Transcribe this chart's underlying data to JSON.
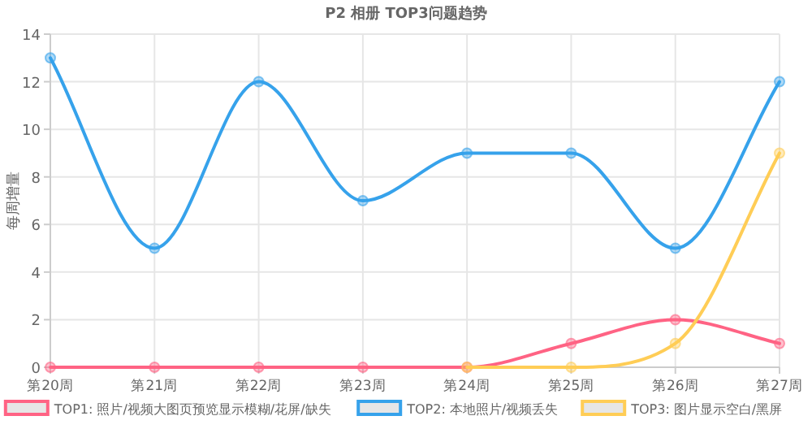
{
  "chart_data": {
    "type": "line",
    "title": "P2 相册 TOP3问题趋势",
    "ylabel": "每周增量",
    "categories": [
      "第20周",
      "第21周",
      "第22周",
      "第23周",
      "第24周",
      "第25周",
      "第26周",
      "第27周"
    ],
    "series": [
      {
        "name": "TOP1: 照片/视频大图页预览显示模糊/花屏/缺失",
        "color": "#ff6384",
        "values": [
          0,
          0,
          0,
          0,
          0,
          1,
          2,
          1
        ]
      },
      {
        "name": "TOP2: 本地照片/视频丢失",
        "color": "#36a2eb",
        "values": [
          13,
          5,
          12,
          7,
          9,
          9,
          5,
          12
        ]
      },
      {
        "name": "TOP3: 图片显示空白/黑屏",
        "color": "#ffcd56",
        "values": [
          null,
          null,
          null,
          null,
          0,
          0,
          1,
          9
        ]
      }
    ],
    "ylim": [
      0,
      14
    ],
    "yticks": [
      0,
      2,
      4,
      6,
      8,
      10,
      12,
      14
    ],
    "grid": true,
    "legend": "bottom",
    "marker": "circle",
    "line_style": "solid"
  }
}
